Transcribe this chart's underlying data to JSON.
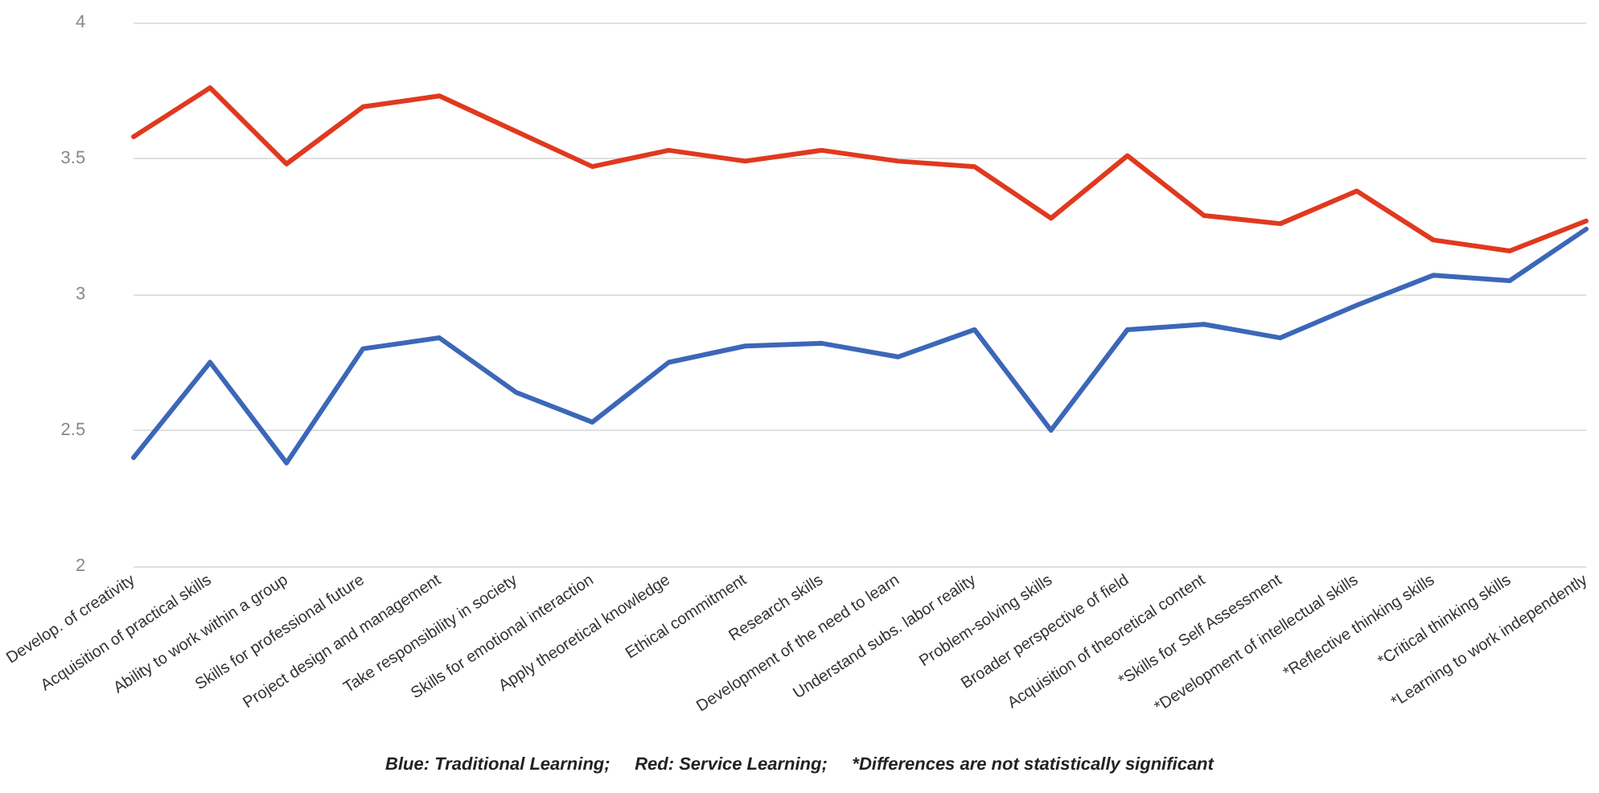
{
  "chart_data": {
    "type": "line",
    "categories": [
      "Develop. of creativity",
      "Acquisition of practical skills",
      "Ability to work within a group",
      "Skills for professional future",
      "Project design and management",
      "Take responsibility in society",
      "Skills for emotional interaction",
      "Apply theoretical knowledge",
      "Ethical commitment",
      "Research skills",
      "Development of the need to learn",
      "Understand subs. labor reality",
      "Problem-solving skills",
      "Broader perspective of field",
      "Acquisition of theoretical content",
      "*Skills for Self Assessment",
      "*Development of intellectual skills",
      "*Reflective thinking skills",
      "*Critical thinking skills",
      "*Learning to work independently"
    ],
    "series": [
      {
        "color": "#e0391f",
        "values": [
          3.58,
          3.76,
          3.48,
          3.69,
          3.73,
          3.6,
          3.47,
          3.53,
          3.49,
          3.53,
          3.49,
          3.47,
          3.28,
          3.51,
          3.29,
          3.26,
          3.38,
          3.2,
          3.16,
          3.27
        ]
      },
      {
        "color": "#3c67b8",
        "values": [
          2.4,
          2.75,
          2.38,
          2.8,
          2.84,
          2.64,
          2.53,
          2.75,
          2.81,
          2.82,
          2.77,
          2.87,
          2.5,
          2.87,
          2.89,
          2.84,
          2.96,
          3.07,
          3.05,
          3.24
        ]
      }
    ],
    "ylim": [
      2,
      4
    ],
    "yticks": [
      2,
      2.5,
      3,
      3.5,
      4
    ],
    "grid": "y",
    "marker": "none",
    "line_style": "solid",
    "annotations": [
      "Blue: Traditional Learning;     Red: Service Learning;     *Differences are not statistically significant"
    ]
  }
}
